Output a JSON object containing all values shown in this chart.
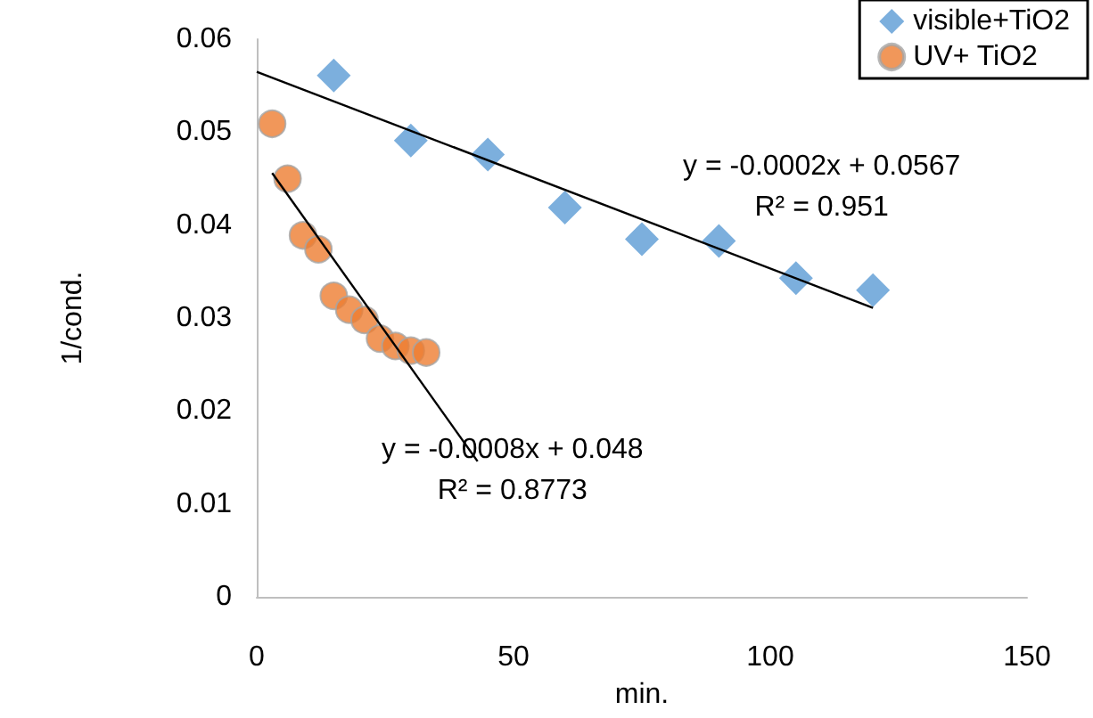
{
  "chart_data": {
    "type": "scatter",
    "xlabel": "min.",
    "ylabel": "1/cond.",
    "xlim": [
      0,
      150
    ],
    "xticks": [
      0,
      50,
      100,
      150
    ],
    "ylim": [
      0,
      0.06
    ],
    "yticks": [
      0,
      0.01,
      0.02,
      0.03,
      0.04,
      0.05,
      0.06
    ],
    "grid": false,
    "legend": "top right",
    "series": [
      {
        "name": "visible+TiO2",
        "color": "#5b9bd5",
        "marker": "diamond",
        "x": [
          15,
          30,
          45,
          60,
          75,
          90,
          105,
          120
        ],
        "values": [
          0.0561,
          0.0491,
          0.0476,
          0.0419,
          0.0385,
          0.0383,
          0.0343,
          0.033
        ]
      },
      {
        "name": "UV+ TiO2",
        "color": "#ed7d31",
        "marker": "circle",
        "x": [
          3,
          6,
          9,
          12,
          15,
          18,
          21,
          24,
          27,
          30,
          33
        ],
        "values": [
          0.0509,
          0.045,
          0.0389,
          0.0374,
          0.0324,
          0.0309,
          0.0298,
          0.0278,
          0.027,
          0.0265,
          0.0263
        ]
      },
      {
        "type": "line",
        "color": "#000000",
        "marker": "none",
        "x": [
          0,
          120
        ],
        "values": [
          0.0565,
          0.0311
        ]
      },
      {
        "type": "line",
        "color": "#000000",
        "marker": "none",
        "x": [
          3,
          43
        ],
        "values": [
          0.0456,
          0.0146
        ]
      }
    ],
    "annotations": [
      "y = -0.0002x + 0.0567\nR² = 0.951",
      "y = -0.0008x + 0.048\nR² = 0.8773"
    ]
  }
}
